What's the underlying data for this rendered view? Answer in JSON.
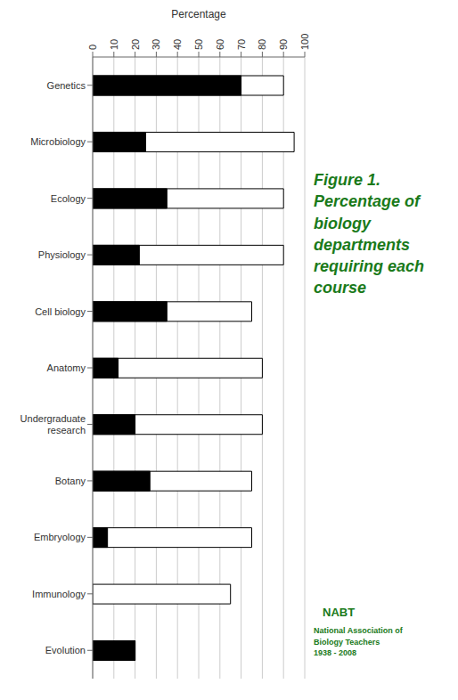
{
  "chart_data": {
    "type": "bar",
    "orientation": "horizontal",
    "xlabel": "Percentage",
    "categories": [
      "Genetics",
      "Microbiology",
      "Ecology",
      "Physiology",
      "Cell biology",
      "Anatomy",
      "Undergraduate\nresearch",
      "Botany",
      "Embryology",
      "Immunology",
      "Evolution"
    ],
    "series": [
      {
        "color": "#ffffff",
        "values": [
          90,
          95,
          90,
          90,
          75,
          80,
          80,
          75,
          75,
          65,
          20
        ]
      },
      {
        "color": "#000000",
        "values": [
          70,
          25,
          35,
          22,
          35,
          12,
          20,
          27,
          7,
          0,
          20
        ]
      }
    ],
    "xlim": [
      0,
      100
    ],
    "xticks": [
      0,
      10,
      20,
      30,
      40,
      50,
      60,
      70,
      80,
      90,
      100
    ],
    "grid": true,
    "annotations": [
      {
        "text": "Figure 1.\nPercentage of\nbiology\ndepartments\nrequiring each\ncourse",
        "color": "#1a7a1a"
      },
      {
        "text": "NABT",
        "color": "#1a7a1a"
      },
      {
        "text": "National Association of\nBiology Teachers\n1938 - 2008",
        "color": "#1a7a1a"
      }
    ]
  }
}
